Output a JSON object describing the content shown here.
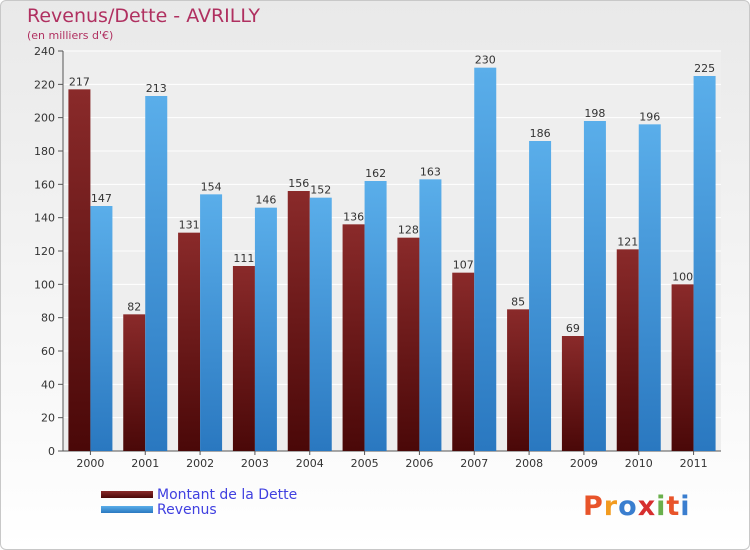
{
  "chart_data": {
    "type": "bar",
    "title": "Revenus/Dette - AVRILLY",
    "subtitle": "(en milliers d'€)",
    "categories": [
      "2000",
      "2001",
      "2002",
      "2003",
      "2004",
      "2005",
      "2006",
      "2007",
      "2008",
      "2009",
      "2010",
      "2011"
    ],
    "series": [
      {
        "name": "Montant de la Dette",
        "color": "#7a2020",
        "values": [
          217,
          82,
          131,
          111,
          156,
          136,
          128,
          107,
          85,
          69,
          121,
          100
        ]
      },
      {
        "name": "Revenus",
        "color": "#4a9de0",
        "values": [
          147,
          213,
          154,
          146,
          152,
          162,
          163,
          230,
          186,
          198,
          196,
          225
        ]
      }
    ],
    "ylim": [
      0,
      240
    ],
    "yticks": [
      0,
      20,
      40,
      60,
      80,
      100,
      120,
      140,
      160,
      180,
      200,
      220,
      240
    ],
    "grid": true,
    "legend": "bottom-left"
  },
  "logo": {
    "letters": [
      "P",
      "r",
      "o",
      "x",
      "i",
      "t",
      "i"
    ],
    "colors": [
      "#e8542a",
      "#f29b1f",
      "#3a7ecf",
      "#d62e2e",
      "#6ab04c",
      "#e8542a",
      "#3a7ecf"
    ]
  }
}
